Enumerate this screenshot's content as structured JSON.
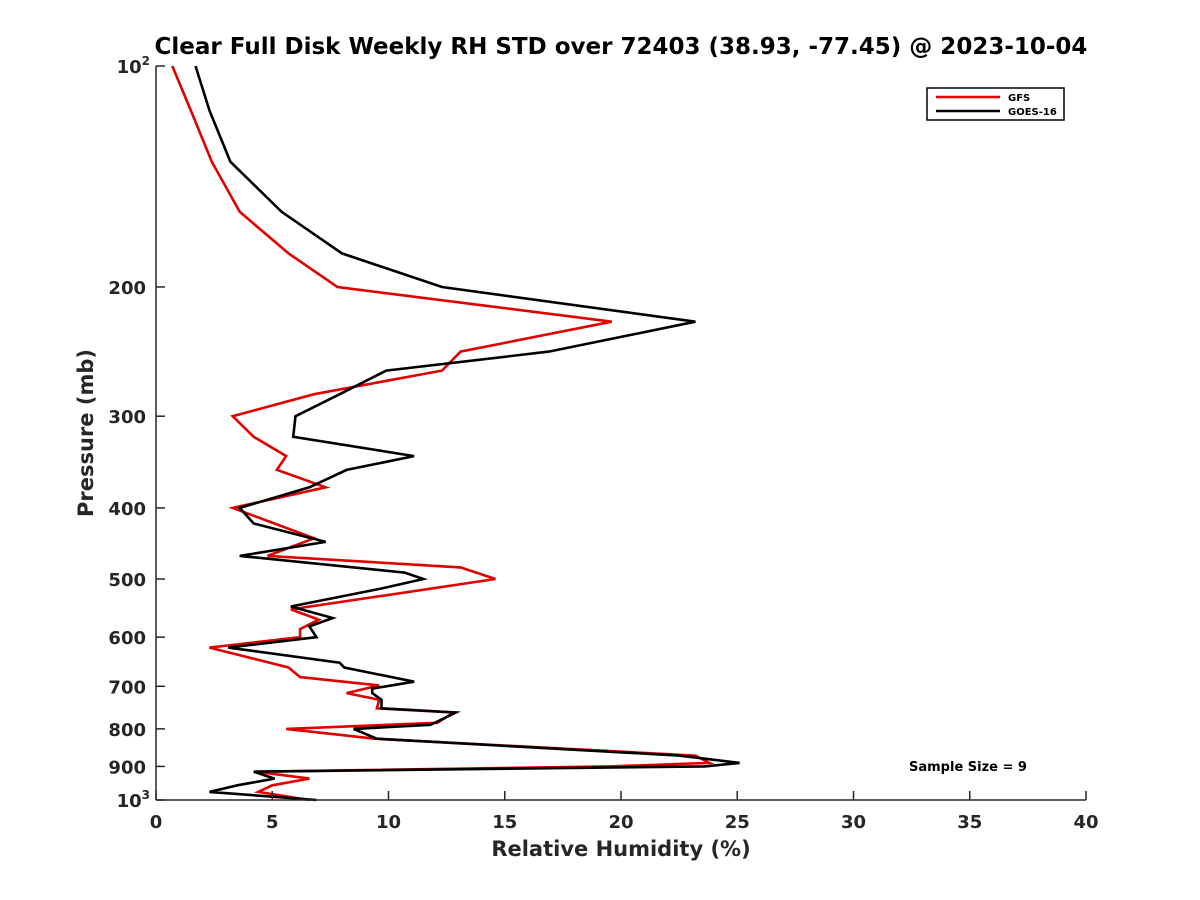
{
  "chart_data": {
    "type": "line",
    "title": "Clear Full Disk Weekly RH STD over 72403 (38.93, -77.45) @ 2023-10-04",
    "xlabel": "Relative Humidity (%)",
    "ylabel": "Pressure (mb)",
    "xlim": [
      0,
      40
    ],
    "ylim": [
      100,
      1000
    ],
    "y_scale": "log",
    "y_reversed": true,
    "grid": false,
    "legend_position": "top-right",
    "x_ticks": [
      "0",
      "5",
      "10",
      "15",
      "20",
      "25",
      "30",
      "35",
      "40"
    ],
    "y_ticks": [
      {
        "value": 100,
        "base": "10",
        "exp": "2"
      },
      {
        "value": 200,
        "label": "200"
      },
      {
        "value": 300,
        "label": "300"
      },
      {
        "value": 400,
        "label": "400"
      },
      {
        "value": 500,
        "label": "500"
      },
      {
        "value": 600,
        "label": "600"
      },
      {
        "value": 700,
        "label": "700"
      },
      {
        "value": 800,
        "label": "800"
      },
      {
        "value": 900,
        "label": "900"
      },
      {
        "value": 1000,
        "base": "10",
        "exp": "3"
      }
    ],
    "annotation": "Sample Size = 9",
    "series": [
      {
        "name": "GFS",
        "color": "#e00000",
        "points": [
          [
            0.7,
            100
          ],
          [
            1.5,
            115
          ],
          [
            2.4,
            135
          ],
          [
            3.6,
            158
          ],
          [
            5.7,
            180
          ],
          [
            7.8,
            200
          ],
          [
            19.6,
            223
          ],
          [
            13.1,
            245
          ],
          [
            12.3,
            260
          ],
          [
            6.8,
            280
          ],
          [
            3.3,
            300
          ],
          [
            4.2,
            320
          ],
          [
            5.6,
            340
          ],
          [
            5.2,
            355
          ],
          [
            7.3,
            375
          ],
          [
            3.3,
            400
          ],
          [
            6.8,
            440
          ],
          [
            4.8,
            465
          ],
          [
            13.1,
            482
          ],
          [
            14.6,
            500
          ],
          [
            5.8,
            550
          ],
          [
            7.0,
            568
          ],
          [
            6.2,
            585
          ],
          [
            6.2,
            600
          ],
          [
            2.3,
            620
          ],
          [
            5.7,
            660
          ],
          [
            6.2,
            680
          ],
          [
            9.6,
            698
          ],
          [
            8.2,
            715
          ],
          [
            9.6,
            730
          ],
          [
            9.5,
            750
          ],
          [
            12.8,
            760
          ],
          [
            12.1,
            785
          ],
          [
            5.6,
            800
          ],
          [
            9.4,
            825
          ],
          [
            23.2,
            870
          ],
          [
            23.8,
            890
          ],
          [
            19.5,
            900
          ],
          [
            4.3,
            915
          ],
          [
            6.6,
            935
          ],
          [
            5.0,
            955
          ],
          [
            4.4,
            975
          ],
          [
            6.6,
            1000
          ]
        ]
      },
      {
        "name": "GOES-16",
        "color": "#000000",
        "points": [
          [
            1.7,
            100
          ],
          [
            2.3,
            115
          ],
          [
            3.2,
            135
          ],
          [
            5.4,
            158
          ],
          [
            8.0,
            180
          ],
          [
            12.3,
            200
          ],
          [
            23.2,
            223
          ],
          [
            16.9,
            245
          ],
          [
            9.9,
            260
          ],
          [
            7.9,
            280
          ],
          [
            6.0,
            300
          ],
          [
            5.9,
            320
          ],
          [
            11.1,
            340
          ],
          [
            8.2,
            355
          ],
          [
            6.6,
            375
          ],
          [
            3.6,
            400
          ],
          [
            4.2,
            420
          ],
          [
            7.3,
            445
          ],
          [
            3.6,
            465
          ],
          [
            10.7,
            490
          ],
          [
            11.5,
            500
          ],
          [
            9.7,
            515
          ],
          [
            5.8,
            545
          ],
          [
            7.6,
            565
          ],
          [
            6.6,
            580
          ],
          [
            6.9,
            600
          ],
          [
            3.1,
            620
          ],
          [
            7.9,
            650
          ],
          [
            8.1,
            660
          ],
          [
            11.1,
            690
          ],
          [
            9.3,
            705
          ],
          [
            9.3,
            715
          ],
          [
            9.7,
            730
          ],
          [
            9.7,
            750
          ],
          [
            12.9,
            760
          ],
          [
            11.8,
            790
          ],
          [
            8.5,
            800
          ],
          [
            9.5,
            825
          ],
          [
            22.5,
            870
          ],
          [
            25.1,
            890
          ],
          [
            23.6,
            900
          ],
          [
            4.2,
            915
          ],
          [
            5.1,
            935
          ],
          [
            3.5,
            955
          ],
          [
            2.3,
            975
          ],
          [
            6.9,
            1000
          ]
        ]
      }
    ]
  }
}
